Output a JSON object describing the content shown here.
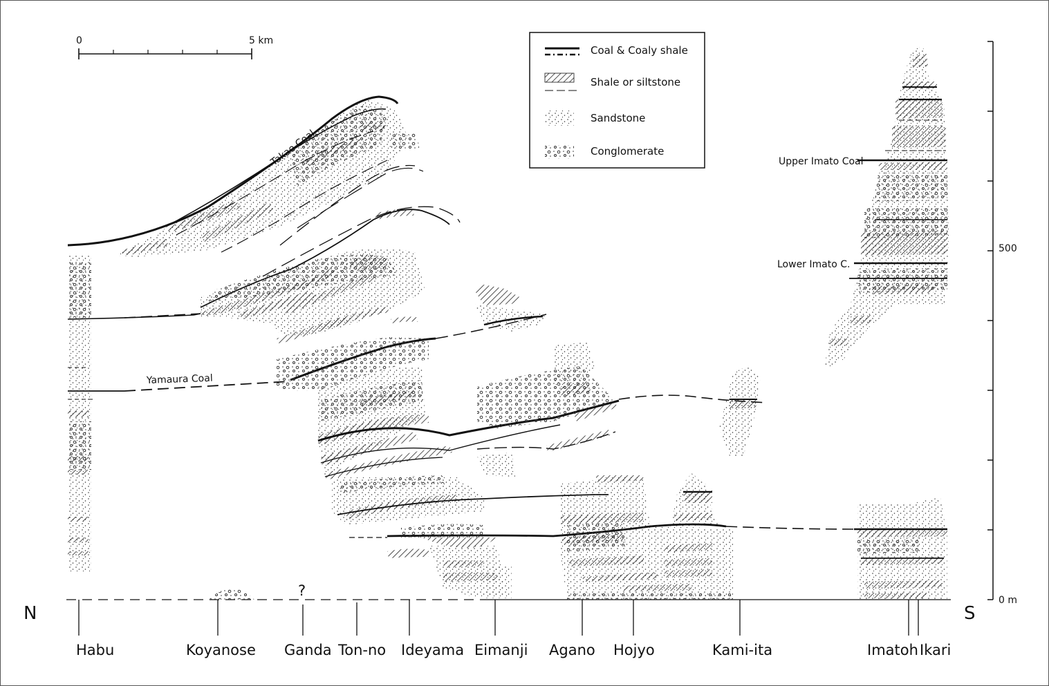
{
  "scale_bar": {
    "start_label": "0",
    "end_label": "5 km"
  },
  "legend": [
    {
      "key": "coal",
      "label": "Coal & Coaly shale"
    },
    {
      "key": "shale",
      "label": "Shale or siltstone"
    },
    {
      "key": "sandstone",
      "label": "Sandstone"
    },
    {
      "key": "conglomerate",
      "label": "Conglomerate"
    }
  ],
  "directions": {
    "north": "N",
    "south": "S"
  },
  "vertical_scale": {
    "top_label": "500",
    "base_label": "0 m"
  },
  "unknown_marker": "?",
  "localities": [
    {
      "id": "habu",
      "name": "Habu"
    },
    {
      "id": "koyanose",
      "name": "Koyanose"
    },
    {
      "id": "ganda",
      "name": "Ganda"
    },
    {
      "id": "ton-no",
      "name": "Ton-no"
    },
    {
      "id": "ideyama",
      "name": "Ideyama"
    },
    {
      "id": "eimanji",
      "name": "Eimanji"
    },
    {
      "id": "agano",
      "name": "Agano"
    },
    {
      "id": "hojyo",
      "name": "Hojyo"
    },
    {
      "id": "kami-ita",
      "name": "Kami-ita"
    },
    {
      "id": "imatoh",
      "name": "Imatoh"
    },
    {
      "id": "ikari",
      "name": "Ikari"
    }
  ],
  "coal_labels": {
    "takae": "Takae Coal",
    "yamaura": "Yamaura Coal",
    "upper_imato": "Upper Imato Coal",
    "lower_imato": "Lower Imato C."
  }
}
